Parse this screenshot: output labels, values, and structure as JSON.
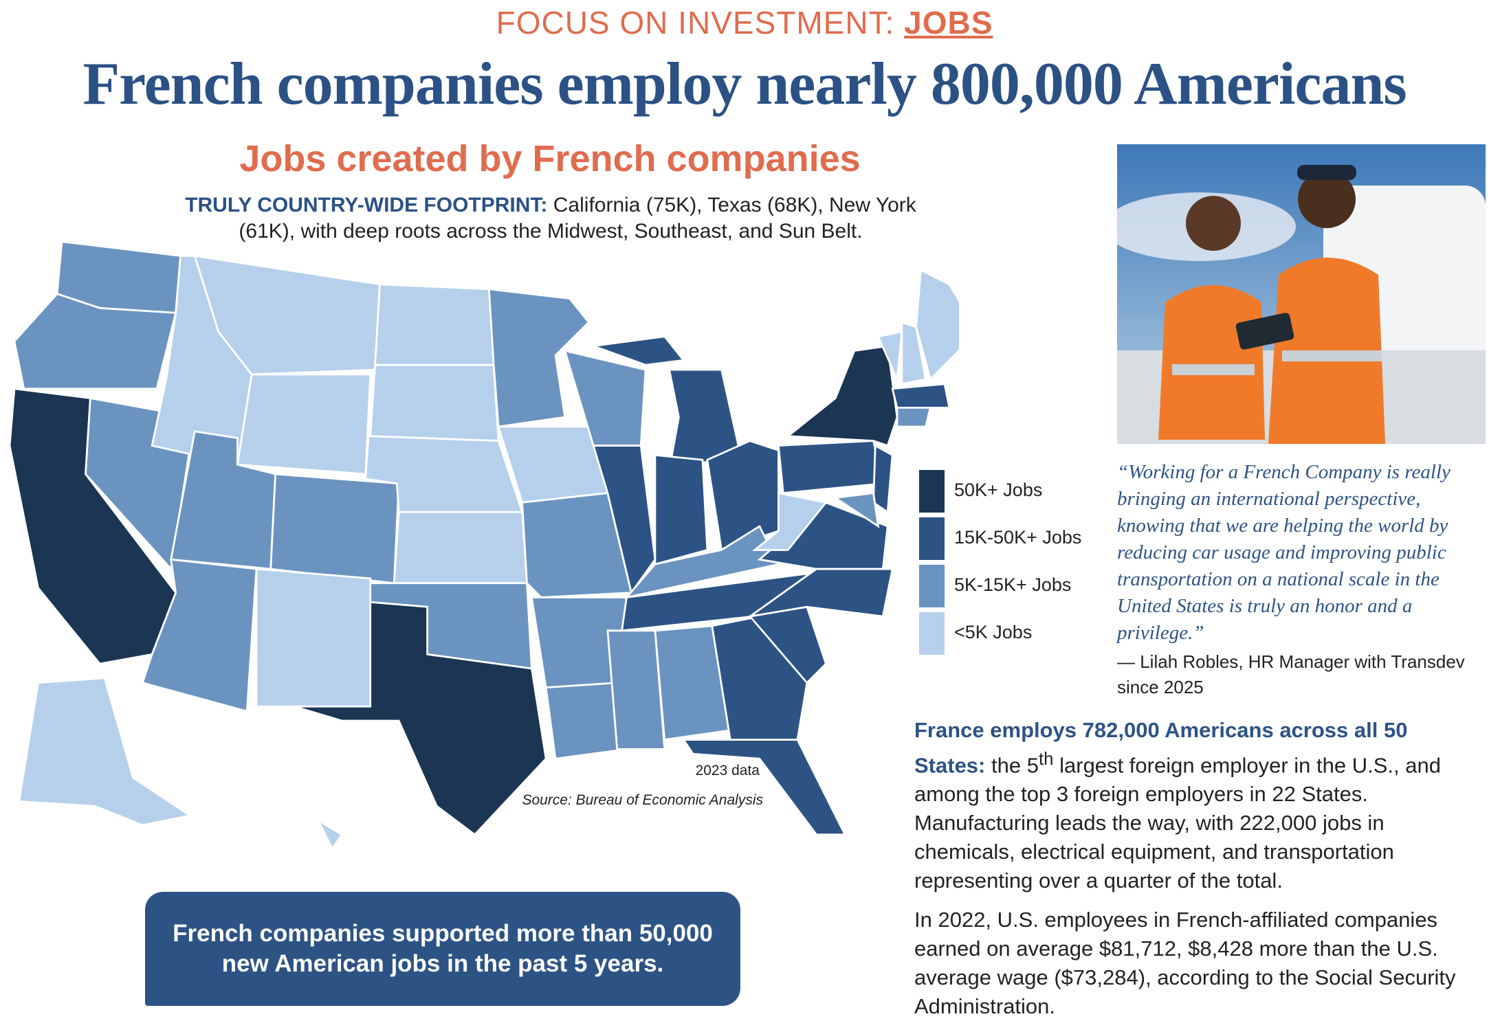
{
  "header": {
    "kicker": "FOCUS ON INVESTMENT:",
    "kicker_highlight": "JOBS",
    "title": "French companies employ nearly 800,000 Americans"
  },
  "map": {
    "title": "Jobs created by French companies",
    "subtitle_lead": "TRULY COUNTRY-WIDE FOOTPRINT:",
    "subtitle_text": "California (75K), Texas (68K), New York (61K), with deep roots across the Midwest, Southeast, and Sun Belt.",
    "legend": [
      {
        "label": "50K+ Jobs",
        "color": "#1b3553"
      },
      {
        "label": "15K-50K+ Jobs",
        "color": "#2d5385"
      },
      {
        "label": "5K-15K+ Jobs",
        "color": "#6b93c0"
      },
      {
        "label": "<5K Jobs",
        "color": "#b6d0ec"
      }
    ],
    "note": "2023 data",
    "source": "Source: Bureau of Economic Analysis"
  },
  "callout": "French companies supported more than 50,000 new American jobs in the past 5 years.",
  "quote": {
    "text": "“Working for a French Company is really bringing an international perspective, knowing that we are helping the world by reducing car usage and improving public transportation on a national scale in the United States is truly an honor and a privilege.”",
    "attribution": "— Lilah Robles,  HR Manager with Transdev since 2025"
  },
  "body": {
    "lead": "France employs 782,000 Americans across all 50 States:",
    "p1_start": "the 5",
    "p1_sup": "th",
    "p1_rest": " largest foreign employer in the U.S., and among the top 3 foreign employers in 22 States. Manufacturing leads the way, with 222,000 jobs in chemicals, electrical equipment, and transportation representing over a quarter of the total.",
    "p2": "In 2022, U.S. employees in French-affiliated companies earned on average $81,712,  $8,428 more than the U.S. average wage ($73,284), according to the Social Security Administration."
  }
}
